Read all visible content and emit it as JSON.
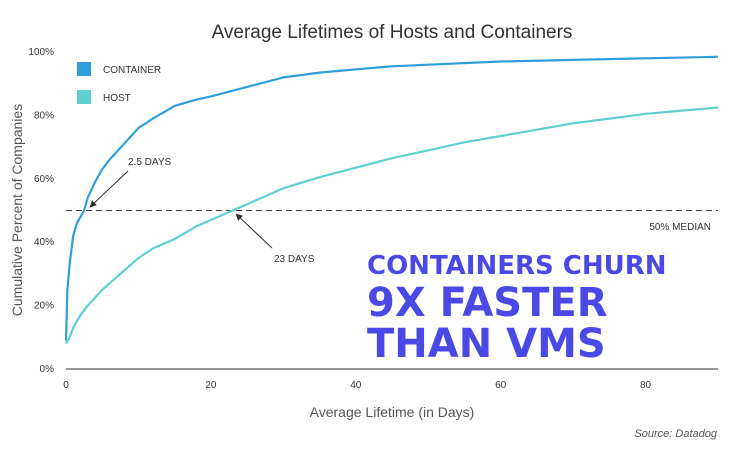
{
  "chart_data": {
    "type": "line",
    "title": "Average Lifetimes of Hosts and Containers",
    "xlabel": "Average Lifetime (in Days)",
    "ylabel": "Cumulative Percent of Companies",
    "xlim": [
      0,
      90
    ],
    "ylim": [
      0,
      100
    ],
    "xticks": [
      "0",
      "20",
      "40",
      "60",
      "80"
    ],
    "yticks": [
      "0%",
      "20%",
      "40%",
      "60%",
      "80%",
      "100%"
    ],
    "grid": false,
    "legend_position": "top-left",
    "series": [
      {
        "name": "CONTAINER",
        "color": "#2f9fdc",
        "x": [
          0,
          0.2,
          0.5,
          1,
          1.5,
          2,
          2.5,
          3,
          4,
          5,
          6,
          8,
          10,
          12,
          15,
          18,
          20,
          25,
          30,
          35,
          40,
          45,
          50,
          60,
          70,
          80,
          90
        ],
        "y": [
          9,
          25,
          33,
          42,
          46,
          48,
          50,
          54,
          59,
          63,
          66,
          71,
          76,
          79,
          83,
          85,
          86,
          89,
          92,
          93.5,
          94.5,
          95.5,
          96,
          97,
          97.5,
          98,
          98.5
        ]
      },
      {
        "name": "HOST",
        "color": "#5fcfcf",
        "x": [
          0,
          0.5,
          1,
          2,
          3,
          5,
          8,
          10,
          12,
          15,
          18,
          20,
          23,
          25,
          30,
          35,
          40,
          45,
          50,
          55,
          60,
          65,
          70,
          75,
          80,
          85,
          90
        ],
        "y": [
          8,
          10,
          13,
          17,
          20,
          25,
          31,
          35,
          38,
          41,
          45,
          47,
          50,
          52,
          57,
          60.5,
          63.5,
          66.5,
          69,
          71.5,
          73.5,
          75.5,
          77.5,
          79,
          80.5,
          81.5,
          82.5
        ]
      }
    ],
    "median_line": {
      "y": 50,
      "label": "50% MEDIAN"
    },
    "annotations": [
      {
        "label": "2.5 DAYS",
        "x": 2.5,
        "y": 50
      },
      {
        "label": "23 DAYS",
        "x": 23,
        "y": 50
      }
    ],
    "headline": [
      "CONTAINERS CHURN",
      "9X FASTER",
      "THAN VMS"
    ],
    "source": "Source: Datadog"
  }
}
